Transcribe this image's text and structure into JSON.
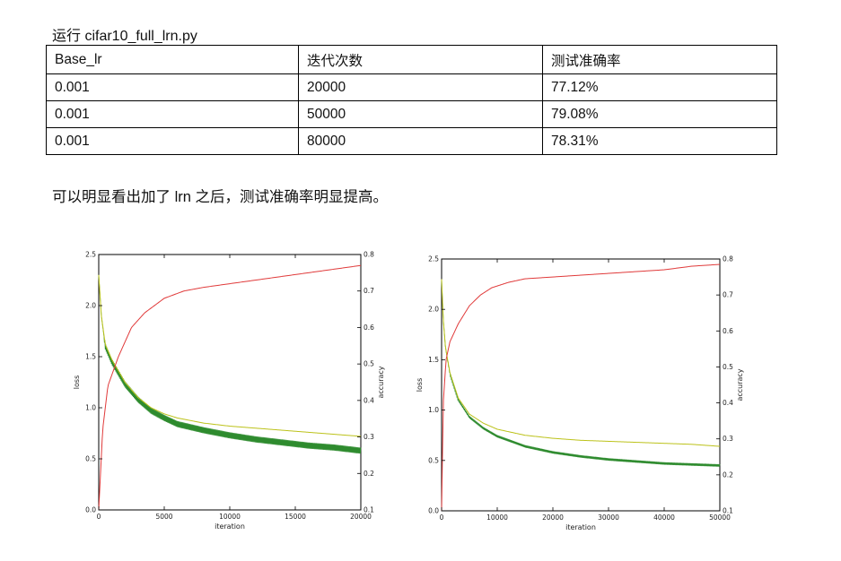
{
  "caption": "运行 cifar10_full_lrn.py",
  "table": {
    "headers": [
      "Base_lr",
      "迭代次数",
      "测试准确率"
    ],
    "rows": [
      [
        "0.001",
        "20000",
        "77.12%"
      ],
      [
        "0.001",
        "50000",
        "79.08%"
      ],
      [
        "0.001",
        "80000",
        "78.31%"
      ]
    ]
  },
  "remark": "可以明显看出加了 lrn 之后，测试准确率明显提高。",
  "chart_data": [
    {
      "type": "line",
      "xlabel": "iteration",
      "ylabel": "loss",
      "y2label": "accuracy",
      "xlim": [
        0,
        20000
      ],
      "ylim": [
        0.0,
        2.5
      ],
      "y2lim": [
        0.1,
        0.8
      ],
      "xticks": [
        "0",
        "5000",
        "10000",
        "15000",
        "20000"
      ],
      "yticks": [
        "0.0",
        "0.5",
        "1.0",
        "1.5",
        "2.0",
        "2.5"
      ],
      "y2ticks": [
        "0.1",
        "0.2",
        "0.3",
        "0.4",
        "0.5",
        "0.6",
        "0.7",
        "0.8"
      ],
      "grid": false,
      "series": [
        {
          "color": "#2e8b2e",
          "axis": "left",
          "oscillation": 0.03,
          "x": [
            0,
            200,
            500,
            1000,
            2000,
            3000,
            4000,
            5000,
            6000,
            8000,
            10000,
            12000,
            14000,
            16000,
            18000,
            20000
          ],
          "y": [
            2.3,
            1.9,
            1.6,
            1.45,
            1.23,
            1.08,
            0.97,
            0.9,
            0.84,
            0.78,
            0.73,
            0.69,
            0.66,
            0.63,
            0.61,
            0.58
          ]
        },
        {
          "color": "#bcc21a",
          "axis": "left",
          "x": [
            0,
            200,
            500,
            1000,
            2000,
            3000,
            4000,
            5000,
            6000,
            8000,
            10000,
            12000,
            14000,
            16000,
            18000,
            20000
          ],
          "y": [
            2.3,
            1.9,
            1.62,
            1.47,
            1.25,
            1.1,
            1.0,
            0.94,
            0.9,
            0.85,
            0.82,
            0.8,
            0.78,
            0.76,
            0.74,
            0.72
          ]
        },
        {
          "color": "#e03a3a",
          "axis": "right",
          "x": [
            0,
            300,
            700,
            1500,
            2500,
            3500,
            5000,
            6500,
            8000,
            10000,
            12000,
            14000,
            16000,
            18000,
            20000
          ],
          "y": [
            0.1,
            0.32,
            0.44,
            0.52,
            0.6,
            0.64,
            0.68,
            0.7,
            0.71,
            0.72,
            0.73,
            0.74,
            0.75,
            0.76,
            0.77
          ]
        }
      ]
    },
    {
      "type": "line",
      "xlabel": "iteration",
      "ylabel": "loss",
      "y2label": "accuracy",
      "xlim": [
        0,
        50000
      ],
      "ylim": [
        0.0,
        2.5
      ],
      "y2lim": [
        0.1,
        0.8
      ],
      "xticks": [
        "0",
        "10000",
        "20000",
        "30000",
        "40000",
        "50000"
      ],
      "yticks": [
        "0.0",
        "0.5",
        "1.0",
        "1.5",
        "2.0",
        "2.5"
      ],
      "y2ticks": [
        "0.1",
        "0.2",
        "0.3",
        "0.4",
        "0.5",
        "0.6",
        "0.7",
        "0.8"
      ],
      "grid": false,
      "series": [
        {
          "color": "#2e8b2e",
          "axis": "left",
          "oscillation": 0.012,
          "x": [
            0,
            300,
            700,
            1500,
            3000,
            5000,
            7500,
            10000,
            15000,
            20000,
            25000,
            30000,
            35000,
            40000,
            45000,
            50000
          ],
          "y": [
            2.3,
            1.9,
            1.62,
            1.36,
            1.1,
            0.93,
            0.82,
            0.74,
            0.64,
            0.58,
            0.54,
            0.51,
            0.49,
            0.47,
            0.46,
            0.45
          ]
        },
        {
          "color": "#bcc21a",
          "axis": "left",
          "x": [
            0,
            300,
            700,
            1500,
            3000,
            5000,
            7500,
            10000,
            15000,
            20000,
            25000,
            30000,
            35000,
            40000,
            45000,
            50000
          ],
          "y": [
            2.3,
            1.9,
            1.62,
            1.37,
            1.12,
            0.96,
            0.87,
            0.81,
            0.75,
            0.72,
            0.7,
            0.69,
            0.68,
            0.67,
            0.66,
            0.64
          ]
        },
        {
          "color": "#e03a3a",
          "axis": "right",
          "x": [
            0,
            300,
            800,
            1500,
            3000,
            5000,
            7000,
            9000,
            12000,
            15000,
            20000,
            25000,
            30000,
            35000,
            40000,
            45000,
            50000
          ],
          "y": [
            0.1,
            0.4,
            0.52,
            0.57,
            0.62,
            0.67,
            0.7,
            0.72,
            0.735,
            0.745,
            0.75,
            0.755,
            0.76,
            0.765,
            0.77,
            0.78,
            0.785
          ]
        }
      ]
    }
  ]
}
